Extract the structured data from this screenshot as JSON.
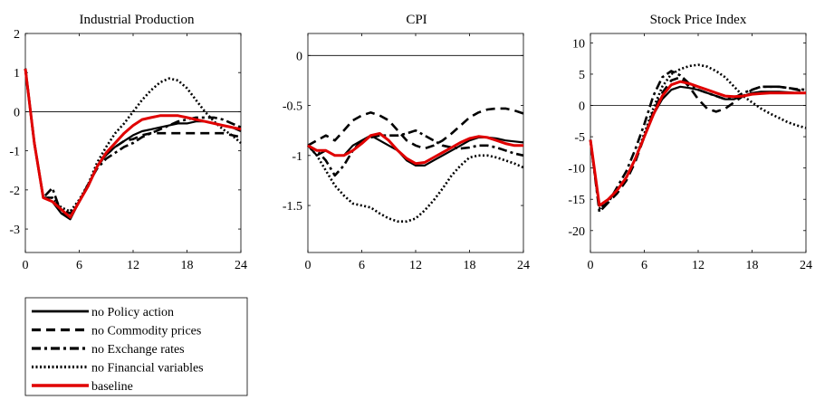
{
  "chart_data": [
    {
      "type": "line",
      "title": "Industrial Production",
      "x": [
        0,
        1,
        2,
        3,
        4,
        5,
        6,
        7,
        8,
        9,
        10,
        11,
        12,
        13,
        14,
        15,
        16,
        17,
        18,
        19,
        20,
        21,
        22,
        23,
        24
      ],
      "xticks": [
        0,
        6,
        12,
        18,
        24
      ],
      "yticks": [
        -3,
        -2,
        -1,
        0,
        1,
        2
      ],
      "xlim": [
        0,
        24
      ],
      "ylim": [
        -3.6,
        2.0
      ],
      "zero_line": true,
      "series": [
        {
          "name": "no Policy action",
          "values": [
            1.1,
            -0.8,
            -2.2,
            -2.3,
            -2.6,
            -2.75,
            -2.3,
            -1.9,
            -1.4,
            -1.1,
            -0.9,
            -0.75,
            -0.6,
            -0.5,
            -0.45,
            -0.4,
            -0.35,
            -0.3,
            -0.3,
            -0.25,
            -0.25,
            -0.3,
            -0.35,
            -0.4,
            -0.5
          ]
        },
        {
          "name": "no Commodity prices",
          "values": [
            1.1,
            -0.8,
            -2.2,
            -2.2,
            -2.5,
            -2.6,
            -2.3,
            -1.9,
            -1.4,
            -1.1,
            -0.9,
            -0.75,
            -0.7,
            -0.6,
            -0.55,
            -0.55,
            -0.55,
            -0.55,
            -0.55,
            -0.55,
            -0.55,
            -0.55,
            -0.55,
            -0.6,
            -0.65
          ]
        },
        {
          "name": "no Exchange rates",
          "values": [
            1.1,
            -0.8,
            -2.2,
            -1.95,
            -2.6,
            -2.7,
            -2.3,
            -1.85,
            -1.45,
            -1.2,
            -1.05,
            -0.9,
            -0.8,
            -0.65,
            -0.55,
            -0.45,
            -0.35,
            -0.25,
            -0.2,
            -0.15,
            -0.15,
            -0.15,
            -0.2,
            -0.3,
            -0.4
          ]
        },
        {
          "name": "no Financial variables",
          "values": [
            1.1,
            -0.8,
            -2.2,
            -2.2,
            -2.45,
            -2.55,
            -2.25,
            -1.85,
            -1.3,
            -0.9,
            -0.55,
            -0.3,
            0.0,
            0.3,
            0.55,
            0.75,
            0.85,
            0.8,
            0.6,
            0.3,
            0.0,
            -0.25,
            -0.45,
            -0.6,
            -0.8
          ]
        },
        {
          "name": "baseline",
          "values": [
            1.1,
            -0.8,
            -2.2,
            -2.3,
            -2.5,
            -2.7,
            -2.3,
            -1.9,
            -1.4,
            -1.05,
            -0.8,
            -0.55,
            -0.35,
            -0.2,
            -0.15,
            -0.1,
            -0.1,
            -0.1,
            -0.15,
            -0.2,
            -0.25,
            -0.3,
            -0.35,
            -0.4,
            -0.45
          ]
        }
      ]
    },
    {
      "type": "line",
      "title": "CPI",
      "x": [
        0,
        1,
        2,
        3,
        4,
        5,
        6,
        7,
        8,
        9,
        10,
        11,
        12,
        13,
        14,
        15,
        16,
        17,
        18,
        19,
        20,
        21,
        22,
        23,
        24
      ],
      "xticks": [
        0,
        6,
        12,
        18,
        24
      ],
      "yticks": [
        -1.5,
        -1,
        -0.5,
        0
      ],
      "ytick_labels": [
        "-1.5",
        "-1",
        "-0.5",
        "0"
      ],
      "xlim": [
        0,
        24
      ],
      "ylim": [
        -1.97,
        0.22
      ],
      "zero_line": true,
      "series": [
        {
          "name": "no Policy action",
          "values": [
            -0.9,
            -1.0,
            -0.95,
            -1.0,
            -1.0,
            -0.9,
            -0.85,
            -0.8,
            -0.85,
            -0.9,
            -0.95,
            -1.05,
            -1.1,
            -1.1,
            -1.05,
            -1.0,
            -0.95,
            -0.9,
            -0.85,
            -0.82,
            -0.82,
            -0.83,
            -0.85,
            -0.86,
            -0.87
          ]
        },
        {
          "name": "no Commodity prices",
          "values": [
            -0.9,
            -0.85,
            -0.8,
            -0.85,
            -0.75,
            -0.65,
            -0.6,
            -0.57,
            -0.6,
            -0.65,
            -0.75,
            -0.85,
            -0.9,
            -0.93,
            -0.9,
            -0.85,
            -0.78,
            -0.7,
            -0.62,
            -0.57,
            -0.54,
            -0.53,
            -0.53,
            -0.55,
            -0.58
          ]
        },
        {
          "name": "no Exchange rates",
          "values": [
            -0.9,
            -0.95,
            -1.05,
            -1.2,
            -1.1,
            -0.95,
            -0.85,
            -0.82,
            -0.8,
            -0.8,
            -0.8,
            -0.78,
            -0.75,
            -0.8,
            -0.85,
            -0.9,
            -0.92,
            -0.93,
            -0.92,
            -0.9,
            -0.9,
            -0.92,
            -0.95,
            -0.98,
            -1.0
          ]
        },
        {
          "name": "no Financial variables",
          "values": [
            -0.9,
            -1.0,
            -1.15,
            -1.3,
            -1.4,
            -1.48,
            -1.5,
            -1.52,
            -1.58,
            -1.63,
            -1.66,
            -1.66,
            -1.63,
            -1.55,
            -1.45,
            -1.33,
            -1.2,
            -1.1,
            -1.02,
            -1.0,
            -1.0,
            -1.02,
            -1.05,
            -1.08,
            -1.12
          ]
        },
        {
          "name": "baseline",
          "values": [
            -0.9,
            -0.95,
            -0.95,
            -1.0,
            -1.0,
            -0.95,
            -0.88,
            -0.8,
            -0.78,
            -0.85,
            -0.95,
            -1.03,
            -1.08,
            -1.07,
            -1.02,
            -0.97,
            -0.92,
            -0.87,
            -0.83,
            -0.81,
            -0.82,
            -0.85,
            -0.88,
            -0.9,
            -0.9
          ]
        }
      ]
    },
    {
      "type": "line",
      "title": "Stock Price Index",
      "x": [
        0,
        1,
        2,
        3,
        4,
        5,
        6,
        7,
        8,
        9,
        10,
        11,
        12,
        13,
        14,
        15,
        16,
        17,
        18,
        19,
        20,
        21,
        22,
        23,
        24
      ],
      "xticks": [
        0,
        6,
        12,
        18,
        24
      ],
      "yticks": [
        -20,
        -15,
        -10,
        -5,
        0,
        5,
        10
      ],
      "xlim": [
        0,
        24
      ],
      "ylim": [
        -23.5,
        11.5
      ],
      "zero_line": true,
      "series": [
        {
          "name": "no Policy action",
          "values": [
            -5.5,
            -16.0,
            -15.0,
            -13.5,
            -11.5,
            -8.5,
            -5.0,
            -1.5,
            1.0,
            2.5,
            3.0,
            2.8,
            2.5,
            2.0,
            1.5,
            1.0,
            1.0,
            1.5,
            2.0,
            2.2,
            2.2,
            2.2,
            2.1,
            2.0,
            2.0
          ]
        },
        {
          "name": "no Commodity prices",
          "values": [
            -5.5,
            -16.5,
            -15.5,
            -14.0,
            -12.0,
            -9.0,
            -5.0,
            -1.0,
            2.0,
            4.0,
            4.5,
            3.0,
            1.0,
            -0.5,
            -1.0,
            -0.5,
            0.5,
            1.5,
            2.5,
            3.0,
            3.0,
            3.0,
            2.8,
            2.5,
            2.2
          ]
        },
        {
          "name": "no Exchange rates",
          "values": [
            -5.5,
            -17.0,
            -15.5,
            -13.0,
            -10.5,
            -7.0,
            -3.0,
            1.5,
            4.5,
            5.5,
            4.8,
            3.5,
            2.5,
            2.0,
            1.5,
            1.0,
            1.2,
            2.0,
            2.5,
            3.0,
            3.0,
            3.0,
            2.8,
            2.6,
            2.5
          ]
        },
        {
          "name": "no Financial variables",
          "values": [
            -5.5,
            -16.5,
            -15.0,
            -13.5,
            -11.5,
            -8.5,
            -4.5,
            -0.5,
            3.0,
            5.0,
            5.8,
            6.3,
            6.5,
            6.2,
            5.5,
            4.5,
            3.0,
            1.5,
            0.5,
            -0.5,
            -1.3,
            -2.0,
            -2.7,
            -3.2,
            -3.6
          ]
        },
        {
          "name": "baseline",
          "values": [
            -5.5,
            -16.0,
            -15.0,
            -13.5,
            -11.5,
            -8.5,
            -5.0,
            -1.5,
            1.5,
            3.3,
            3.8,
            3.5,
            3.0,
            2.5,
            2.0,
            1.5,
            1.4,
            1.5,
            1.8,
            1.9,
            2.0,
            2.0,
            2.0,
            2.0,
            2.0
          ]
        }
      ]
    }
  ],
  "legend": {
    "placement": "bottom-left",
    "entries": [
      {
        "label": "no Policy action",
        "style": "solid",
        "color": "#000000"
      },
      {
        "label": "no Commodity prices",
        "style": "dashed",
        "color": "#000000"
      },
      {
        "label": "no Exchange rates",
        "style": "dashdot",
        "color": "#000000"
      },
      {
        "label": "no Financial variables",
        "style": "dotted",
        "color": "#000000"
      },
      {
        "label": "baseline",
        "style": "solid",
        "color": "#e00000"
      }
    ]
  }
}
